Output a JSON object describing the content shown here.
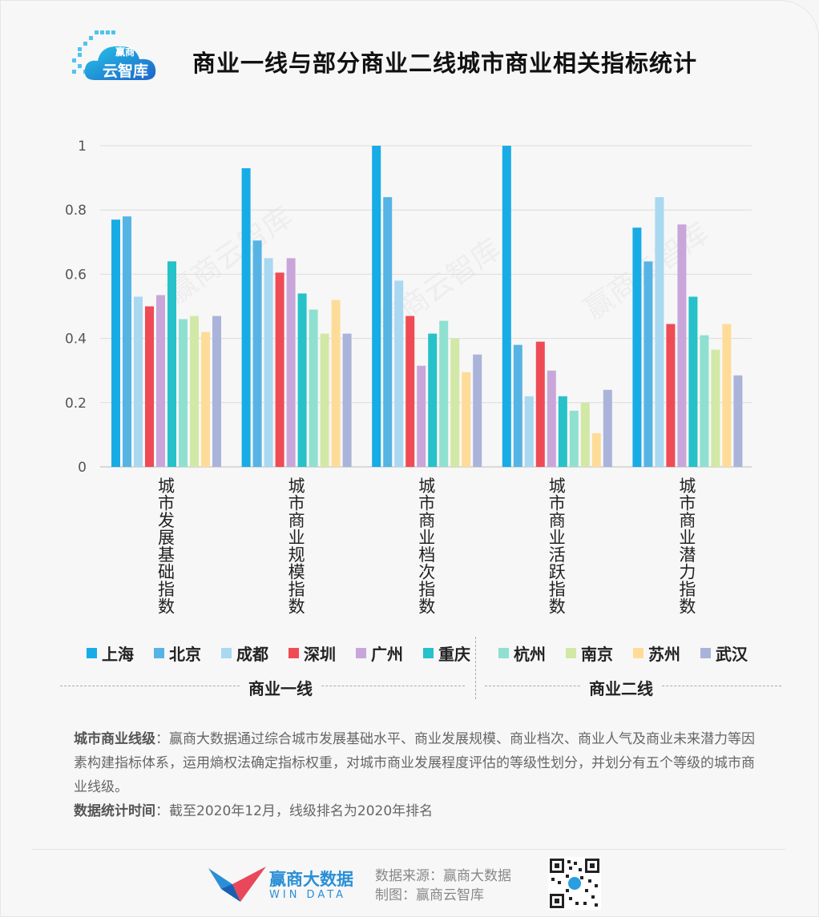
{
  "brand": {
    "logo_small": "赢商",
    "logo_main": "云智库"
  },
  "title": "商业一线与部分商业二线城市商业相关指标统计",
  "chart_data": {
    "type": "bar",
    "title": "商业一线与部分商业二线城市商业相关指标统计",
    "categories": [
      "城市发展基础指数",
      "城市商业规模指数",
      "城市商业档次指数",
      "城市商业活跃指数",
      "城市商业潜力指数"
    ],
    "y_ticks": [
      "0",
      "0.2",
      "0.4",
      "0.6",
      "0.8",
      "1"
    ],
    "ylim": [
      0,
      1
    ],
    "grid": true,
    "legend_position": "bottom",
    "series": [
      {
        "name": "上海",
        "color": "#17ace6",
        "values": [
          0.77,
          0.93,
          1.0,
          1.0,
          0.745
        ]
      },
      {
        "name": "北京",
        "color": "#55b4e4",
        "values": [
          0.78,
          0.705,
          0.84,
          0.38,
          0.64
        ]
      },
      {
        "name": "成都",
        "color": "#a9d8f1",
        "values": [
          0.53,
          0.65,
          0.58,
          0.22,
          0.84
        ]
      },
      {
        "name": "深圳",
        "color": "#ef4b55",
        "values": [
          0.5,
          0.605,
          0.47,
          0.39,
          0.445
        ]
      },
      {
        "name": "广州",
        "color": "#c9a6da",
        "values": [
          0.535,
          0.65,
          0.315,
          0.3,
          0.755
        ]
      },
      {
        "name": "重庆",
        "color": "#26c1c9",
        "values": [
          0.64,
          0.54,
          0.415,
          0.22,
          0.53
        ]
      },
      {
        "name": "杭州",
        "color": "#8fe0d0",
        "values": [
          0.46,
          0.49,
          0.455,
          0.175,
          0.41
        ]
      },
      {
        "name": "南京",
        "color": "#d2e8a6",
        "values": [
          0.47,
          0.415,
          0.4,
          0.2,
          0.365
        ]
      },
      {
        "name": "苏州",
        "color": "#fedc98",
        "values": [
          0.42,
          0.52,
          0.295,
          0.105,
          0.445
        ]
      },
      {
        "name": "武汉",
        "color": "#aab4da",
        "values": [
          0.47,
          0.415,
          0.35,
          0.24,
          0.285
        ]
      }
    ]
  },
  "groups": {
    "tier1": "商业一线",
    "tier2": "商业二线"
  },
  "description": {
    "label1": "城市商业线级",
    "text1": "：赢商大数据通过综合城市发展基础水平、商业发展规模、商业档次、商业人气及商业未来潜力等因素构建指标体系，运用熵权法确定指标权重，对城市商业发展程度评估的等级性划分，并划分有五个等级的城市商业线级。",
    "label2": "数据统计时间",
    "text2": "：截至2020年12月，线级排名为2020年排名"
  },
  "footer": {
    "brand_name": "赢商大数据",
    "brand_sub": "WIN DATA",
    "source": "数据来源：赢商大数据",
    "maker": "制图：赢商云智库"
  }
}
